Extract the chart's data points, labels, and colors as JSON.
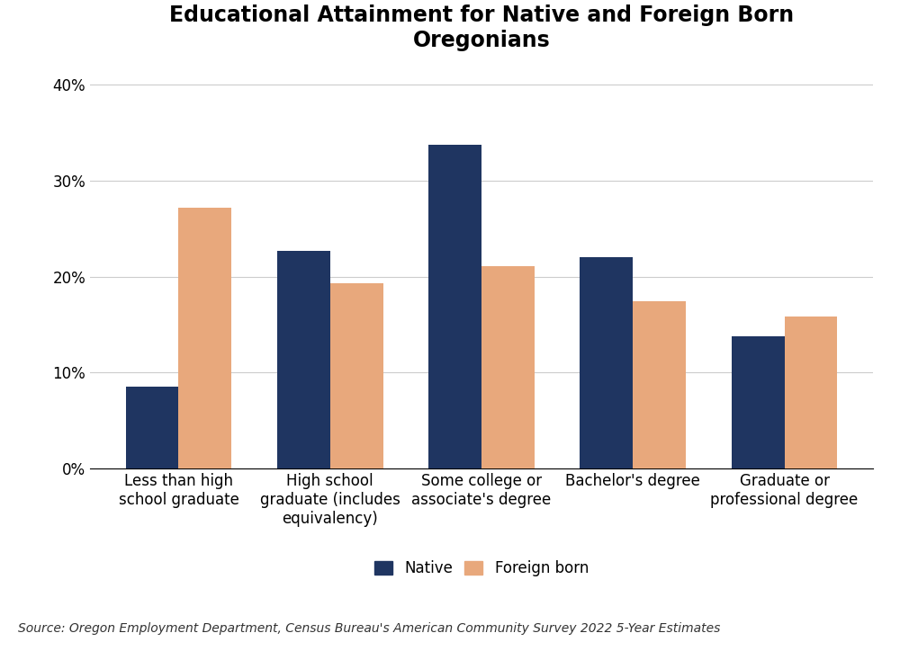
{
  "title": "Educational Attainment for Native and Foreign Born\nOregonians",
  "categories": [
    "Less than high\nschool graduate",
    "High school\ngraduate (includes\nequivalency)",
    "Some college or\nassociate's degree",
    "Bachelor's degree",
    "Graduate or\nprofessional degree"
  ],
  "native_values": [
    8.5,
    22.7,
    33.7,
    22.0,
    13.8
  ],
  "foreign_born_values": [
    27.2,
    19.3,
    21.1,
    17.4,
    15.8
  ],
  "native_color": "#1f3561",
  "foreign_born_color": "#e8a87c",
  "ylim": [
    0,
    42
  ],
  "yticks": [
    0,
    10,
    20,
    30,
    40
  ],
  "ytick_labels": [
    "0%",
    "10%",
    "20%",
    "30%",
    "40%"
  ],
  "legend_labels": [
    "Native",
    "Foreign born"
  ],
  "source_text": "Source: Oregon Employment Department, Census Bureau's American Community Survey 2022 5-Year Estimates",
  "title_fontsize": 17,
  "axis_fontsize": 12,
  "tick_fontsize": 12,
  "legend_fontsize": 12,
  "source_fontsize": 10,
  "bar_width": 0.35,
  "background_color": "#ffffff"
}
